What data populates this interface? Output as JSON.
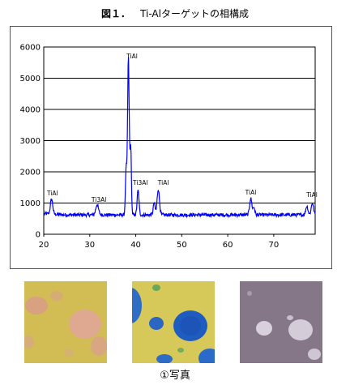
{
  "title": {
    "fig_label": "図１．",
    "text": "Ti-Alターゲットの相構成"
  },
  "photo_caption": "①写真",
  "colors": {
    "line": "#0000ff",
    "grid": "#000000",
    "frame": "#555555"
  },
  "chart_data": {
    "type": "line",
    "xlabel": "",
    "ylabel": "",
    "xlim": [
      20,
      79
    ],
    "ylim": [
      0,
      6000
    ],
    "x_ticks": [
      20,
      30,
      40,
      50,
      60,
      70
    ],
    "y_ticks": [
      0,
      1000,
      2000,
      3000,
      4000,
      5000,
      6000
    ],
    "grid": "horizontal",
    "series": [
      {
        "baseline": 620,
        "peaks": [
          {
            "x": 21.7,
            "y": 1100,
            "w": 0.25
          },
          {
            "x": 31.6,
            "y": 950,
            "w": 0.3
          },
          {
            "x": 38.4,
            "y": 5650,
            "w": 0.18
          },
          {
            "x": 38.9,
            "y": 2800,
            "w": 0.15
          },
          {
            "x": 37.9,
            "y": 2100,
            "w": 0.15
          },
          {
            "x": 40.5,
            "y": 1400,
            "w": 0.2
          },
          {
            "x": 44.0,
            "y": 1000,
            "w": 0.2
          },
          {
            "x": 44.9,
            "y": 1450,
            "w": 0.25
          },
          {
            "x": 65.0,
            "y": 1150,
            "w": 0.25
          },
          {
            "x": 65.7,
            "y": 850,
            "w": 0.2
          },
          {
            "x": 77.2,
            "y": 900,
            "w": 0.25
          },
          {
            "x": 78.4,
            "y": 1000,
            "w": 0.25
          }
        ]
      }
    ],
    "annotations": [
      {
        "text": "TiAl",
        "x": 21.9,
        "y": 1250
      },
      {
        "text": "Ti3Al",
        "x": 32.0,
        "y": 1040
      },
      {
        "text": "TiAl",
        "x": 39.2,
        "y": 5630
      },
      {
        "text": "Ti3Al",
        "x": 41.0,
        "y": 1590
      },
      {
        "text": "TiAl",
        "x": 46.0,
        "y": 1590
      },
      {
        "text": "TiAl",
        "x": 65.0,
        "y": 1270
      },
      {
        "text": "TiAl",
        "x": 78.3,
        "y": 1200
      }
    ]
  }
}
